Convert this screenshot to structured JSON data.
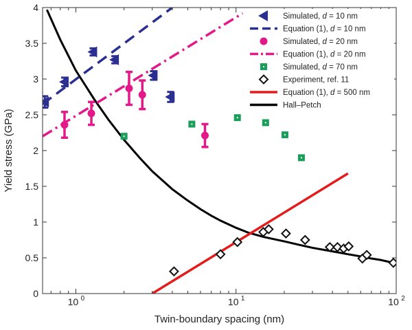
{
  "chart_data": {
    "type": "scatter",
    "title": "",
    "xlabel": "Twin-boundary spacing (nm)",
    "ylabel": "Yield stress (GPa)",
    "xscale": "log",
    "xlim": [
      0.62,
      100
    ],
    "ylim": [
      0,
      4
    ],
    "grid": false,
    "legend_position": "top-right",
    "x_tick_labels": [
      {
        "value": 1,
        "label": "10",
        "exp": "0"
      },
      {
        "value": 10,
        "label": "10",
        "exp": "1"
      },
      {
        "value": 100,
        "label": "10",
        "exp": "2"
      }
    ],
    "y_ticks": [
      0,
      0.5,
      1,
      1.5,
      2,
      2.5,
      3,
      3.5,
      4
    ],
    "y_tick_labels": [
      "0",
      "0.5",
      "1",
      "1.5",
      "2",
      "2.5",
      "3",
      "3.5",
      "4"
    ],
    "colors": {
      "sim10": "#2b2f8f",
      "sim20": "#e3198a",
      "sim70": "#1a9e5a",
      "experiment": "#111111",
      "eq500": "#e41b1b",
      "hallpetch": "#000000"
    },
    "series": [
      {
        "key": "sim10",
        "name": "Simulated, d = 10 nm",
        "kind": "points",
        "marker": "triangle-left",
        "x": [
          0.64,
          0.85,
          1.28,
          1.75,
          3.05,
          3.9
        ],
        "y": [
          2.68,
          2.96,
          3.38,
          3.27,
          3.05,
          2.75
        ],
        "yerr": [
          0.08,
          0.06,
          0.05,
          0.05,
          0.06,
          0.07
        ]
      },
      {
        "key": "eq10",
        "name": "Equation (1), d = 10 nm",
        "kind": "line",
        "style": "dashed",
        "color": "#2b2f8f",
        "x": [
          0.62,
          4.0
        ],
        "y": [
          2.65,
          4.0
        ]
      },
      {
        "key": "sim20",
        "name": "Simulated, d = 20 nm",
        "kind": "points",
        "marker": "circle",
        "x": [
          0.85,
          1.25,
          2.15,
          2.6,
          6.4
        ],
        "y": [
          2.36,
          2.52,
          2.87,
          2.78,
          2.21
        ],
        "yerr": [
          0.18,
          0.16,
          0.23,
          0.2,
          0.16
        ]
      },
      {
        "key": "eq20",
        "name": "Equation (1), d = 20 nm",
        "kind": "line",
        "style": "dashdot",
        "color": "#e3198a",
        "x": [
          0.62,
          11.0
        ],
        "y": [
          2.2,
          3.92
        ]
      },
      {
        "key": "sim70",
        "name": "Simulated, d = 70 nm",
        "kind": "points",
        "marker": "square",
        "x": [
          2.0,
          5.3,
          10.2,
          15.3,
          20.2,
          25.6
        ],
        "y": [
          2.2,
          2.37,
          2.46,
          2.39,
          2.22,
          1.9
        ]
      },
      {
        "key": "experiment",
        "name": "Experiment, ref. 11",
        "kind": "points",
        "marker": "diamond",
        "x": [
          4.1,
          8.0,
          10.2,
          14.8,
          16.0,
          20.5,
          27.0,
          38.5,
          43.0,
          47.0,
          50.5,
          61.5,
          65.5,
          96.0
        ],
        "y": [
          0.31,
          0.55,
          0.72,
          0.86,
          0.9,
          0.84,
          0.75,
          0.65,
          0.65,
          0.63,
          0.66,
          0.49,
          0.54,
          0.43
        ]
      },
      {
        "key": "eq500",
        "name": "Equation (1), d = 500 nm",
        "kind": "line",
        "style": "solid",
        "color": "#e41b1b",
        "x": [
          3.0,
          50.0
        ],
        "y": [
          0.0,
          1.68
        ]
      },
      {
        "key": "hallpetch",
        "name": "Hall–Petch",
        "kind": "curve",
        "style": "solid",
        "color": "#000000",
        "x": [
          0.66,
          0.8,
          1.0,
          1.3,
          1.6,
          2.0,
          2.5,
          3.0,
          4.0,
          5.0,
          6.0,
          7.0,
          8.0,
          10.0,
          12.0,
          15.0,
          20.0,
          25.0,
          30.0,
          40.0,
          50.0,
          60.0,
          70.0,
          80.0,
          100.0
        ],
        "y": [
          3.97,
          3.55,
          3.12,
          2.72,
          2.43,
          2.15,
          1.9,
          1.71,
          1.46,
          1.3,
          1.18,
          1.09,
          1.02,
          0.92,
          0.85,
          0.79,
          0.73,
          0.68,
          0.64,
          0.59,
          0.55,
          0.52,
          0.49,
          0.47,
          0.42
        ]
      }
    ],
    "legend": [
      {
        "key": "sim10",
        "text": "Simulated, ",
        "italic": "d",
        "rest": " = 10 nm"
      },
      {
        "key": "eq10",
        "text": "Equation (1), ",
        "italic": "d",
        "rest": " = 10 nm"
      },
      {
        "key": "sim20",
        "text": "Simulated, ",
        "italic": "d",
        "rest": " = 20 nm"
      },
      {
        "key": "eq20",
        "text": "Equation (1), ",
        "italic": "d",
        "rest": " = 20 nm"
      },
      {
        "key": "sim70",
        "text": "Simulated, ",
        "italic": "d",
        "rest": " = 70 nm"
      },
      {
        "key": "experiment",
        "text": "Experiment, ref. 11",
        "italic": "",
        "rest": ""
      },
      {
        "key": "eq500",
        "text": "Equation (1), ",
        "italic": "d",
        "rest": " = 500 nm"
      },
      {
        "key": "hallpetch",
        "text": "Hall–Petch",
        "italic": "",
        "rest": ""
      }
    ]
  }
}
